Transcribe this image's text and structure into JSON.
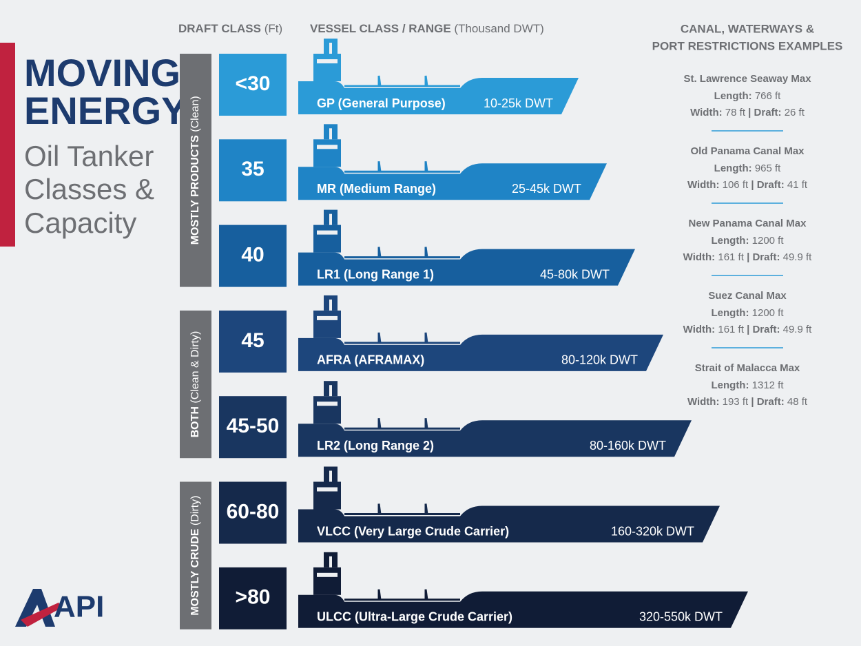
{
  "header": {
    "title": [
      "MOVING",
      "ENERGY"
    ],
    "subtitle": [
      "Oil Tanker",
      "Classes &",
      "Capacity"
    ]
  },
  "column_headers": {
    "draft": {
      "bold": "DRAFT CLASS",
      "light": "(Ft)"
    },
    "vessel": {
      "bold": "VESSEL CLASS / RANGE",
      "light": "(Thousand DWT)"
    }
  },
  "groups": [
    {
      "bold": "MOSTLY PRODUCTS",
      "light": "(Clean)",
      "rows": 3
    },
    {
      "bold": "BOTH",
      "light": "(Clean & Dirty)",
      "rows": 2
    },
    {
      "bold": "MOSTLY CRUDE",
      "light": "(Dirty)",
      "rows": 2
    }
  ],
  "classes": [
    {
      "draft": "<30",
      "name": "GP (General Purpose)",
      "range": "10-25k DWT",
      "color": "#2b9bd7"
    },
    {
      "draft": "35",
      "name": "MR (Medium Range)",
      "range": "25-45k DWT",
      "color": "#1f84c6"
    },
    {
      "draft": "40",
      "name": "LR1 (Long Range 1)",
      "range": "45-80k DWT",
      "color": "#175f9e"
    },
    {
      "draft": "45",
      "name": "AFRA (AFRAMAX)",
      "range": "80-120k DWT",
      "color": "#1d467c"
    },
    {
      "draft": "45-50",
      "name": "LR2 (Long Range 2)",
      "range": "80-160k DWT",
      "color": "#193660"
    },
    {
      "draft": "60-80",
      "name": "VLCC (Very Large Crude Carrier)",
      "range": "160-320k DWT",
      "color": "#15294b"
    },
    {
      "draft": ">80",
      "name": "ULCC (Ultra-Large Crude Carrier)",
      "range": "320-550k DWT",
      "color": "#101c36"
    }
  ],
  "restrictions": {
    "heading": [
      "CANAL, WATERWAYS &",
      "PORT RESTRICTIONS EXAMPLES"
    ],
    "length_label": "Length:",
    "width_label": "Width:",
    "draft_label": "Draft:",
    "separator": "|",
    "items": [
      {
        "name": "St. Lawrence Seaway Max",
        "length": "766 ft",
        "width": "78 ft",
        "draft": "26 ft"
      },
      {
        "name": "Old Panama Canal Max",
        "length": "965 ft",
        "width": "106 ft",
        "draft": "41 ft"
      },
      {
        "name": "New Panama Canal Max",
        "length": "1200 ft",
        "width": "161 ft",
        "draft": "49.9 ft"
      },
      {
        "name": "Suez Canal Max",
        "length": "1200 ft",
        "width": "161 ft",
        "draft": "49.9 ft"
      },
      {
        "name": "Strait of Malacca Max",
        "length": "1312 ft",
        "width": "193 ft",
        "draft": "48 ft"
      }
    ]
  },
  "logo": "API"
}
